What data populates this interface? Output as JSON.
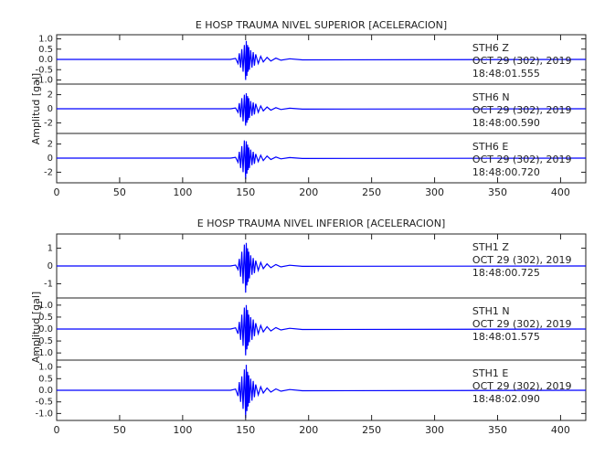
{
  "chart_data": [
    {
      "type": "line",
      "title": "E HOSP TRAUMA NIVEL SUPERIOR [ACELERACION]",
      "ylabel": "Amplitud [gal]",
      "color": "#0000ff",
      "xlim": [
        0,
        420
      ],
      "xticks": [
        0,
        50,
        100,
        150,
        200,
        250,
        300,
        350,
        400
      ],
      "x": [
        0,
        138,
        142,
        144,
        145,
        146,
        147,
        148,
        149,
        150,
        150.5,
        151,
        151.5,
        152,
        152.5,
        153,
        154,
        155,
        156,
        157,
        158,
        160,
        162,
        164,
        167,
        170,
        174,
        178,
        185,
        195,
        420
      ],
      "panels": [
        {
          "label": "STH6   Z",
          "date": "OCT 29 (302), 2019",
          "time": "18:48:01.555",
          "ylim": [
            -1.2,
            1.2
          ],
          "yticks": [
            {
              "value": -1,
              "label": "-1.0"
            },
            {
              "value": -0.5,
              "label": "-0.5"
            },
            {
              "value": 0,
              "label": "0.0"
            },
            {
              "value": 0.5,
              "label": "0.5"
            },
            {
              "value": 1,
              "label": "1.0"
            }
          ],
          "values": [
            0,
            0,
            0.05,
            -0.2,
            0.3,
            -0.4,
            0.5,
            -0.6,
            0.7,
            -1.0,
            0.9,
            -0.8,
            0.7,
            -0.6,
            0.6,
            -0.5,
            0.45,
            -0.4,
            0.35,
            -0.3,
            0.25,
            -0.2,
            0.15,
            -0.12,
            0.1,
            -0.08,
            0.06,
            -0.04,
            0.03,
            -0.02,
            0
          ]
        },
        {
          "label": "STH6   N",
          "date": "OCT 29 (302), 2019",
          "time": "18:48:00.590",
          "ylim": [
            -3.5,
            3.5
          ],
          "yticks": [
            -2,
            0,
            2
          ],
          "values": [
            0,
            0,
            0.1,
            -0.5,
            0.8,
            -1.2,
            1.5,
            -1.8,
            2.0,
            -2.4,
            2.2,
            -2.0,
            1.8,
            -1.6,
            1.5,
            -1.3,
            1.1,
            -1.0,
            0.9,
            -0.8,
            0.7,
            -0.5,
            0.4,
            -0.3,
            0.25,
            -0.2,
            0.15,
            -0.1,
            0.08,
            -0.05,
            0
          ]
        },
        {
          "label": "STH6   E",
          "date": "OCT 29 (302), 2019",
          "time": "18:48:00.720",
          "ylim": [
            -3.5,
            3.5
          ],
          "yticks": [
            -2,
            0,
            2
          ],
          "values": [
            0,
            0,
            0.1,
            -0.6,
            0.9,
            -1.4,
            1.7,
            -2.0,
            2.5,
            -3.0,
            2.4,
            -2.2,
            1.9,
            -1.7,
            1.5,
            -1.4,
            1.2,
            -1.0,
            0.9,
            -0.8,
            0.6,
            -0.5,
            0.4,
            -0.35,
            0.3,
            -0.2,
            0.15,
            -0.1,
            0.08,
            -0.05,
            0
          ]
        }
      ]
    },
    {
      "type": "line",
      "title": "E HOSP TRAUMA NIVEL INFERIOR [ACELERACION]",
      "ylabel": "Amplitud [gal]",
      "color": "#0000ff",
      "xlim": [
        0,
        420
      ],
      "xticks": [
        0,
        50,
        100,
        150,
        200,
        250,
        300,
        350,
        400
      ],
      "x": [
        0,
        138,
        142,
        144,
        145,
        146,
        147,
        148,
        149,
        150,
        150.5,
        151,
        151.5,
        152,
        152.5,
        153,
        154,
        155,
        156,
        157,
        158,
        160,
        162,
        164,
        167,
        170,
        174,
        178,
        185,
        195,
        420
      ],
      "panels": [
        {
          "label": "STH1   Z",
          "date": "OCT 29 (302), 2019",
          "time": "18:48:00.725",
          "ylim": [
            -1.8,
            1.8
          ],
          "yticks": [
            -1,
            0,
            1
          ],
          "values": [
            0,
            0,
            0.05,
            -0.2,
            0.4,
            -0.6,
            0.8,
            -1.0,
            1.2,
            -1.5,
            1.3,
            -1.1,
            1.0,
            -0.9,
            0.8,
            -0.7,
            0.6,
            -0.5,
            0.45,
            -0.4,
            0.3,
            -0.25,
            0.2,
            -0.15,
            0.12,
            -0.1,
            0.08,
            -0.05,
            0.04,
            -0.02,
            0
          ]
        },
        {
          "label": "STH1   N",
          "date": "OCT 29 (302), 2019",
          "time": "18:48:01.575",
          "ylim": [
            -1.3,
            1.3
          ],
          "yticks": [
            {
              "value": -1,
              "label": "-1.0"
            },
            {
              "value": -0.5,
              "label": "-0.5"
            },
            {
              "value": 0,
              "label": "0.0"
            },
            {
              "value": 0.5,
              "label": "0.5"
            },
            {
              "value": 1,
              "label": "1.0"
            }
          ],
          "values": [
            0,
            0,
            0.05,
            -0.2,
            0.3,
            -0.45,
            0.6,
            -0.7,
            0.9,
            -1.1,
            1.0,
            -0.85,
            0.8,
            -0.7,
            0.6,
            -0.55,
            0.5,
            -0.45,
            0.4,
            -0.3,
            0.25,
            -0.2,
            0.15,
            -0.12,
            0.1,
            -0.08,
            0.06,
            -0.04,
            0.03,
            -0.02,
            0
          ]
        },
        {
          "label": "STH1   E",
          "date": "OCT 29 (302), 2019",
          "time": "18:48:02.090",
          "ylim": [
            -1.3,
            1.3
          ],
          "yticks": [
            {
              "value": -1,
              "label": "-1.0"
            },
            {
              "value": -0.5,
              "label": "-0.5"
            },
            {
              "value": 0,
              "label": "0.0"
            },
            {
              "value": 0.5,
              "label": "0.5"
            },
            {
              "value": 1,
              "label": "1.0"
            }
          ],
          "values": [
            0,
            0,
            0.05,
            -0.25,
            0.35,
            -0.5,
            0.6,
            -0.8,
            0.9,
            -1.2,
            1.1,
            -0.9,
            0.8,
            -0.7,
            0.65,
            -0.55,
            0.5,
            -0.45,
            0.4,
            -0.3,
            0.25,
            -0.2,
            0.15,
            -0.12,
            0.1,
            -0.08,
            0.06,
            -0.04,
            0.03,
            -0.02,
            0
          ]
        }
      ]
    }
  ]
}
